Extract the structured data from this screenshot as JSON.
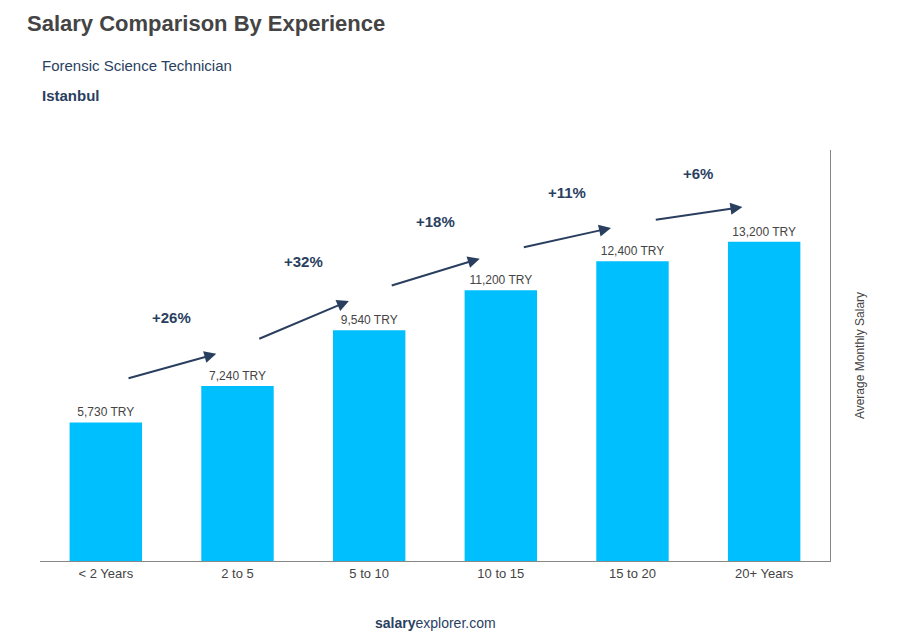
{
  "chart_data": {
    "type": "bar",
    "title": "Salary Comparison By Experience",
    "subtitle": [
      "Forensic Science Technician",
      "Istanbul"
    ],
    "ylabel": "Average Monthly Salary",
    "categories": [
      "< 2 Years",
      "2 to 5",
      "5 to 10",
      "10 to 15",
      "15 to 20",
      "20+ Years"
    ],
    "values": [
      5730,
      7240,
      9540,
      11200,
      12400,
      13200
    ],
    "value_labels": [
      "5,730 TRY",
      "7,240 TRY",
      "9,540 TRY",
      "11,200 TRY",
      "12,400 TRY",
      "13,200 TRY"
    ],
    "data_labels": true,
    "annotations": [
      "+26%",
      "+32%",
      "+18%",
      "+11%",
      "+6%"
    ],
    "footer": [
      "salary",
      "explorer.com"
    ],
    "color": "#00BFFF",
    "ylim": [
      0,
      17000
    ],
    "grid": false,
    "tick_labels": "x"
  }
}
